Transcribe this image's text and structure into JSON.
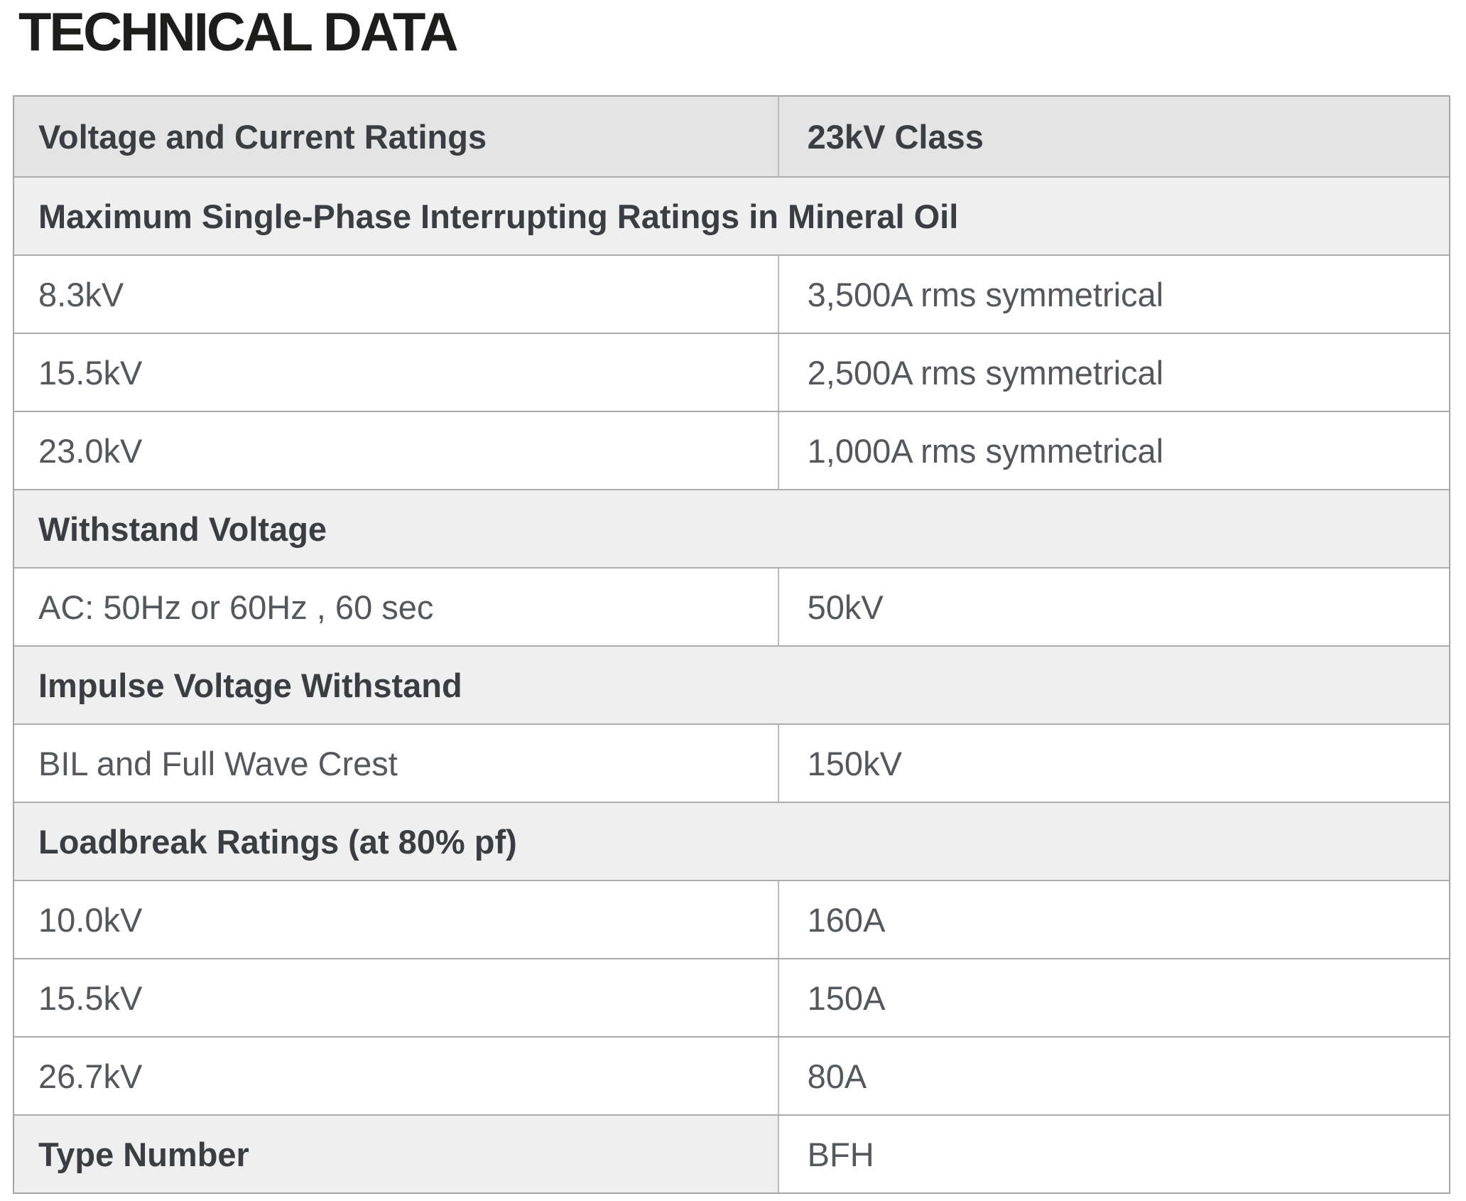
{
  "page_title": "TECHNICAL DATA",
  "colors": {
    "title_text": "#1d1d1b",
    "header_row_bg": "#e4e4e4",
    "section_row_bg": "#efefef",
    "data_row_bg": "#ffffff",
    "bold_text": "#3a3d41",
    "data_text": "#54575b",
    "table_border": "#a5a5a5",
    "row_divider": "#ababab",
    "column_divider": "#b9b9b9"
  },
  "table": {
    "header": {
      "col1": "Voltage and Current Ratings",
      "col2": "23kV Class"
    },
    "rows": [
      {
        "type": "section",
        "label": "Maximum Single-Phase Interrupting Ratings in Mineral Oil"
      },
      {
        "type": "data",
        "col1": "8.3kV",
        "col2": "3,500A rms symmetrical"
      },
      {
        "type": "data",
        "col1": "15.5kV",
        "col2": "2,500A rms symmetrical"
      },
      {
        "type": "data",
        "col1": "23.0kV",
        "col2": "1,000A rms symmetrical"
      },
      {
        "type": "section",
        "label": "Withstand Voltage"
      },
      {
        "type": "data",
        "col1": "AC: 50Hz or 60Hz , 60 sec",
        "col2": "50kV"
      },
      {
        "type": "section",
        "label": "Impulse Voltage Withstand"
      },
      {
        "type": "data",
        "col1": "BIL and Full Wave Crest",
        "col2": "150kV"
      },
      {
        "type": "section",
        "label": "Loadbreak Ratings (at 80% pf)"
      },
      {
        "type": "data",
        "col1": "10.0kV",
        "col2": "160A"
      },
      {
        "type": "data",
        "col1": "15.5kV",
        "col2": "150A"
      },
      {
        "type": "data",
        "col1": "26.7kV",
        "col2": "80A"
      },
      {
        "type": "data-emphasis",
        "col1": "Type Number",
        "col2": "BFH"
      }
    ]
  }
}
